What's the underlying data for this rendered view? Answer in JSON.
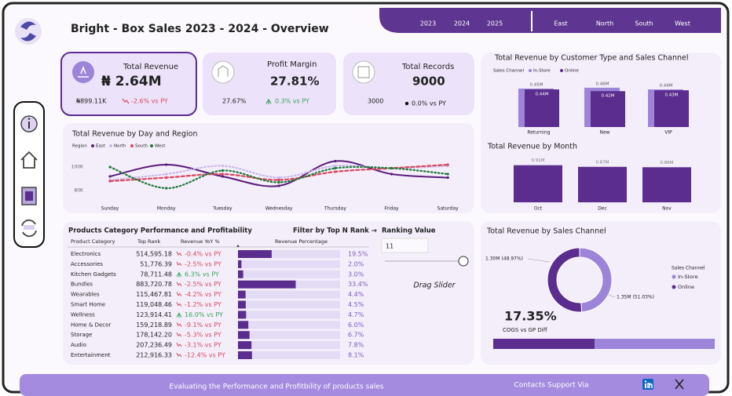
{
  "header": {
    "title": "Bright - Box Sales 2023 - 2024 - Overview",
    "years": [
      "2023",
      "2024",
      "2025"
    ],
    "regions": [
      "East",
      "North",
      "South",
      "West"
    ]
  },
  "kpis": [
    {
      "title": "Total Revenue",
      "value": "₦ 2.64M",
      "previous": "₦899.11K",
      "change": "-2.6% vs PY"
    },
    {
      "title": "Profit Margin",
      "value": "27.81%",
      "previous": "27.67%",
      "change": "0.3% vs PY"
    },
    {
      "title": "Total Records",
      "value": "9000",
      "previous": "3000",
      "change": "0.0% vs PY"
    }
  ],
  "charts": {
    "customer_type": {
      "type": "bar",
      "title": "Total Revenue by Customer Type and Sales Channel",
      "legend_title": "Sales Channel",
      "categories": [
        "Returning",
        "New",
        "VIP"
      ],
      "series": [
        {
          "name": "In-Store",
          "color": "#9c84d8",
          "values": [
            0.45,
            0.46,
            0.44
          ],
          "value_labels": [
            "0.45M",
            "0.46M",
            "0.44M"
          ]
        },
        {
          "name": "Online",
          "color": "#5b2d8e",
          "values": [
            0.44,
            0.42,
            0.43
          ],
          "value_labels": [
            "0.44M",
            "0.42M",
            "0.43M"
          ]
        }
      ]
    },
    "by_month": {
      "type": "bar",
      "title": "Total Revenue by Month",
      "categories": [
        "Oct",
        "Dec",
        "Nov"
      ],
      "color": "#5b2d8e",
      "values": [
        0.91,
        0.87,
        0.86
      ],
      "value_labels": [
        "0.91M",
        "0.87M",
        "0.86M"
      ]
    },
    "day_region": {
      "type": "line",
      "title": "Total Revenue by Day and Region",
      "legend_title": "Region",
      "categories": [
        "Sunday",
        "Monday",
        "Tuesday",
        "Wednesday",
        "Thursday",
        "Friday",
        "Saturday"
      ],
      "ylim": [
        70,
        110
      ],
      "yticks": [
        {
          "value": 80,
          "label": "80K"
        },
        {
          "value": 100,
          "label": "100K"
        }
      ],
      "series": [
        {
          "name": "East",
          "color": "#5b1a7a",
          "line_style": "solid",
          "values": [
            92,
            102,
            92,
            84,
            105,
            94,
            91
          ]
        },
        {
          "name": "North",
          "color": "#cbb8e6",
          "line_style": "dotted",
          "values": [
            89,
            94,
            101,
            91,
            101,
            99,
            101
          ]
        },
        {
          "name": "South",
          "color": "#d9485f",
          "line_style": "dashed",
          "values": [
            88,
            91,
            94,
            89,
            96,
            99,
            102
          ]
        },
        {
          "name": "West",
          "color": "#1f7a3a",
          "line_style": "dotted",
          "values": [
            100,
            82,
            97,
            87,
            99,
            99,
            94
          ]
        }
      ]
    },
    "sales_channel": {
      "type": "donut",
      "title": "Total Revenue by Sales Channel",
      "legend_title": "Sales Channel",
      "categories": [
        "In-Store",
        "Online"
      ],
      "colors": [
        "#9c84d8",
        "#5b2d8e"
      ],
      "values": [
        48.97,
        51.03
      ],
      "value_labels": [
        "1.30M (48.97%)",
        "1.35M (51.03%)"
      ]
    }
  },
  "product_table": {
    "title": "Products Category Performance and Profitability",
    "columns": [
      "Product Category",
      "Top Rank",
      "Revenue YoY %",
      "Revenue Percentage"
    ],
    "rows": [
      {
        "category": "Electronics",
        "revenue": "514,595.18",
        "yoy": "-0.4% vs PY",
        "share": 19.5,
        "share_label": "19.5%"
      },
      {
        "category": "Accessories",
        "revenue": "51,776.39",
        "yoy": "-2.5% vs PY",
        "share": 2.0,
        "share_label": "2.0%"
      },
      {
        "category": "Kitchen Gadgets",
        "revenue": "78,711.48",
        "yoy": "6.3% vs PY",
        "share": 3.0,
        "share_label": "3.0%"
      },
      {
        "category": "Bundles",
        "revenue": "883,720.78",
        "yoy": "-2.5% vs PY",
        "share": 33.4,
        "share_label": "33.4%"
      },
      {
        "category": "Wearables",
        "revenue": "115,467.81",
        "yoy": "-4.2% vs PY",
        "share": 4.4,
        "share_label": "4.4%"
      },
      {
        "category": "Smart Home",
        "revenue": "119,048.46",
        "yoy": "-1.2% vs PY",
        "share": 4.5,
        "share_label": "4.5%"
      },
      {
        "category": "Wellness",
        "revenue": "123,914.41",
        "yoy": "16.0% vs PY",
        "share": 4.7,
        "share_label": "4.7%"
      },
      {
        "category": "Home & Decor",
        "revenue": "159,218.89",
        "yoy": "-9.1% vs PY",
        "share": 6.0,
        "share_label": "6.0%"
      },
      {
        "category": "Storage",
        "revenue": "178,142.20",
        "yoy": "-5.3% vs PY",
        "share": 6.7,
        "share_label": "6.7%"
      },
      {
        "category": "Audio",
        "revenue": "207,236.49",
        "yoy": "-3.1% vs PY",
        "share": 7.8,
        "share_label": "7.8%"
      },
      {
        "category": "Entertainment",
        "revenue": "212,916.33",
        "yoy": "-12.4% vs PY",
        "share": 8.1,
        "share_label": "8.1%"
      }
    ]
  },
  "filter": {
    "title": "Filter by Top N Rank →",
    "label": "Ranking Value",
    "value": "11",
    "hint": "Drag Slider"
  },
  "cogs": {
    "value": "17.35%",
    "label": "COGS vs GP Diff"
  },
  "footer": {
    "text": "Evaluating the Performance and Profitbility of products sales",
    "contact": "Contacts Support Via"
  }
}
